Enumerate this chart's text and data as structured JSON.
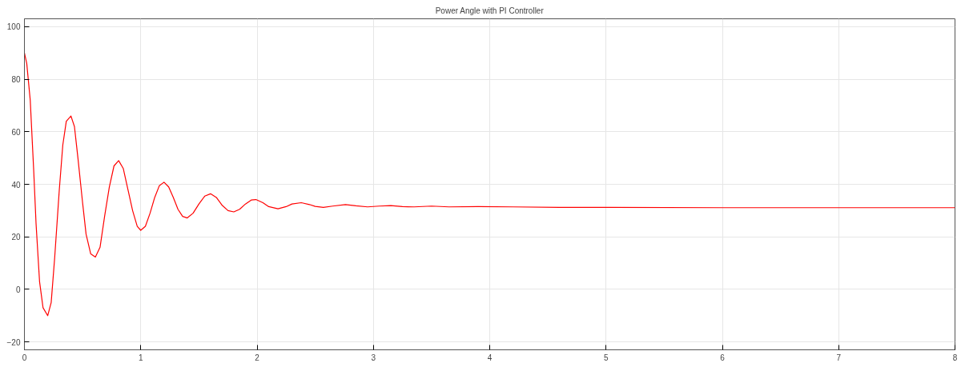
{
  "chart_data": {
    "type": "line",
    "title": "Power Angle with PI Controller",
    "x": [
      0,
      0.02,
      0.05,
      0.08,
      0.1,
      0.13,
      0.16,
      0.2,
      0.23,
      0.26,
      0.3,
      0.33,
      0.36,
      0.4,
      0.43,
      0.46,
      0.5,
      0.53,
      0.57,
      0.61,
      0.65,
      0.69,
      0.73,
      0.77,
      0.81,
      0.85,
      0.89,
      0.93,
      0.97,
      1.0,
      1.04,
      1.08,
      1.12,
      1.16,
      1.2,
      1.24,
      1.28,
      1.32,
      1.36,
      1.4,
      1.45,
      1.5,
      1.55,
      1.6,
      1.65,
      1.7,
      1.75,
      1.8,
      1.85,
      1.9,
      1.95,
      1.99,
      2.05,
      2.1,
      2.18,
      2.25,
      2.3,
      2.38,
      2.45,
      2.5,
      2.57,
      2.65,
      2.76,
      2.85,
      2.95,
      3.05,
      3.15,
      3.25,
      3.35,
      3.5,
      3.65,
      3.9,
      4.2,
      4.6,
      5,
      6,
      7,
      8
    ],
    "series": [
      {
        "color": "#ff0000",
        "values": [
          90,
          86,
          72,
          45,
          25,
          3,
          -7,
          -10,
          -5,
          12,
          38,
          55,
          64,
          66,
          62,
          50,
          33,
          21,
          13.5,
          12.3,
          16,
          28,
          39,
          47,
          49,
          46,
          38,
          30,
          24,
          22.5,
          24,
          29,
          35,
          39.5,
          40.8,
          39,
          35,
          30.5,
          27.8,
          27.2,
          29,
          32.5,
          35.5,
          36.4,
          35,
          32,
          30,
          29.5,
          30.5,
          32.5,
          34,
          34.2,
          33,
          31.5,
          30.7,
          31.5,
          32.5,
          33,
          32.3,
          31.6,
          31.2,
          31.7,
          32.3,
          31.8,
          31.4,
          31.7,
          31.9,
          31.5,
          31.4,
          31.7,
          31.4,
          31.5,
          31.4,
          31.2,
          31.2,
          31.1,
          31.1,
          31.1
        ]
      }
    ],
    "xlim": [
      0,
      8
    ],
    "xticks": [
      0,
      1,
      2,
      3,
      4,
      5,
      6,
      7,
      8
    ],
    "ylim": [
      -23,
      103
    ],
    "yticks": [
      -20,
      0,
      20,
      40,
      60,
      80,
      100
    ],
    "grid": true,
    "marker": "none",
    "line_style": "solid"
  }
}
